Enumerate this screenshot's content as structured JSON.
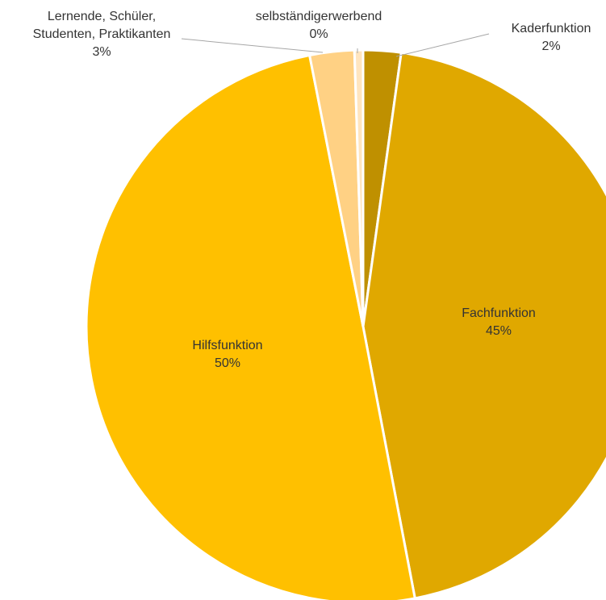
{
  "chart_data": {
    "type": "pie",
    "title": "",
    "slices": [
      {
        "name": "Kaderfunktion",
        "value": 2.2,
        "label_value": "2%",
        "color": "#BF9000"
      },
      {
        "name": "Fachfunktion",
        "value": 44.8,
        "label_value": "45%",
        "color": "#E0A800"
      },
      {
        "name": "Hilfsfunktion",
        "value": 49.9,
        "label_value": "50%",
        "color": "#FFC000"
      },
      {
        "name": "Lernende, Schüler, Studenten, Praktikanten",
        "name_lines": [
          "Lernende, Schüler,",
          "Studenten, Praktikanten"
        ],
        "value": 2.6,
        "label_value": "3%",
        "color": "#FFD184"
      },
      {
        "name": "selbständigerwerbend",
        "value": 0.5,
        "label_value": "0%",
        "color": "#FFE5BF"
      }
    ],
    "start_angle": "12 o'clock",
    "direction": "clockwise",
    "legend": "none",
    "labels": "category name and percentage"
  }
}
